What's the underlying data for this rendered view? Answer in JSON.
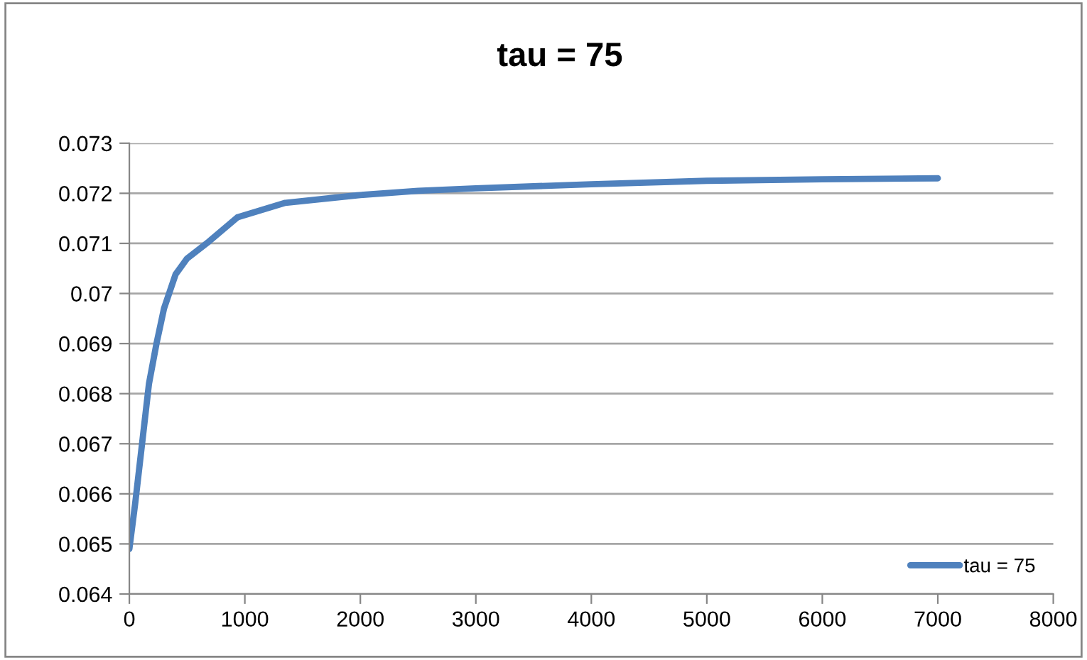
{
  "chart_data": {
    "type": "line",
    "title": "tau = 75",
    "series": [
      {
        "name": "tau = 75",
        "color": "#4f81bd",
        "x": [
          0,
          50,
          115,
          170,
          235,
          300,
          400,
          500,
          690,
          935,
          1350,
          1970,
          2500,
          3000,
          4000,
          5000,
          6000,
          7000
        ],
        "values": [
          0.0649,
          0.0658,
          0.0671,
          0.0682,
          0.069,
          0.0697,
          0.07038,
          0.0707,
          0.07104,
          0.07152,
          0.07181,
          0.07196,
          0.07205,
          0.0721,
          0.07218,
          0.07225,
          0.07228,
          0.0723
        ]
      }
    ],
    "xlim": [
      0,
      8000
    ],
    "xticks": [
      0,
      1000,
      2000,
      3000,
      4000,
      5000,
      6000,
      7000,
      8000
    ],
    "ylim": [
      0.064,
      0.073
    ],
    "yticks": [
      {
        "value": 0.064,
        "label": "0.064"
      },
      {
        "value": 0.065,
        "label": "0.065"
      },
      {
        "value": 0.066,
        "label": "0.066"
      },
      {
        "value": 0.067,
        "label": "0.067"
      },
      {
        "value": 0.068,
        "label": "0.068"
      },
      {
        "value": 0.069,
        "label": "0.069"
      },
      {
        "value": 0.07,
        "label": "0.07"
      },
      {
        "value": 0.071,
        "label": "0.071"
      },
      {
        "value": 0.072,
        "label": "0.072"
      },
      {
        "value": 0.073,
        "label": "0.073"
      }
    ],
    "grid": "y",
    "legend": "lower right",
    "marker": "none",
    "line_style": "solid"
  }
}
